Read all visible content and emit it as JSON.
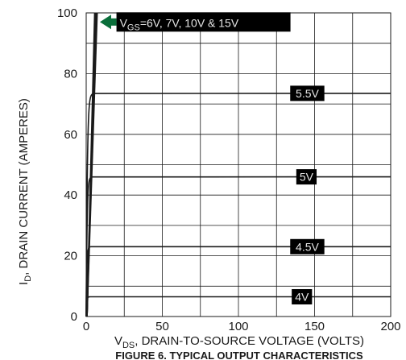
{
  "chart_data": {
    "type": "line",
    "title": "",
    "caption": "FIGURE 6. TYPICAL OUTPUT CHARACTERISTICS",
    "xlabel": {
      "main": "V",
      "sub": "DS",
      "rest": ", DRAIN-TO-SOURCE VOLTAGE (VOLTS)"
    },
    "ylabel": {
      "main": "I",
      "sub": "D",
      "rest": ", DRAIN CURRENT (AMPERES)"
    },
    "xlim": [
      0,
      200
    ],
    "ylim": [
      0,
      100
    ],
    "x_ticks": [
      0,
      50,
      100,
      150,
      200
    ],
    "y_ticks": [
      0,
      20,
      40,
      60,
      80,
      100
    ],
    "x_grid": [
      0,
      25,
      50,
      75,
      100,
      125,
      150,
      175,
      200
    ],
    "y_grid": [
      0,
      10,
      20,
      30,
      40,
      50,
      60,
      70,
      80,
      90,
      100
    ],
    "grid": true,
    "series": [
      {
        "name": "4V",
        "saturation": 6.5,
        "label_x": 135,
        "label_y": 6.5
      },
      {
        "name": "4.5V",
        "saturation": 23,
        "label_x": 134,
        "label_y": 23
      },
      {
        "name": "5V",
        "saturation": 46,
        "label_x": 138,
        "label_y": 46
      },
      {
        "name": "5.5V",
        "saturation": 73.5,
        "label_x": 134,
        "label_y": 73.5
      }
    ],
    "steep_group": {
      "label": {
        "main": "V",
        "sub": "GS",
        "rest": "=6V, 7V, 10V & 15V"
      },
      "lines": [
        {
          "x1": 5.6,
          "y_at": 100
        },
        {
          "x1": 6.0,
          "y_at": 100
        },
        {
          "x1": 6.5,
          "y_at": 100
        },
        {
          "x1": 7.2,
          "y_at": 100
        }
      ],
      "arrow_target": [
        9,
        97
      ],
      "label_x": 22,
      "label_y": 97
    },
    "colors": {
      "curve": "#1a1a1a",
      "grid": "#1a1a1a",
      "label_bg": "#000000",
      "label_text": "#e6e6e6",
      "arrow": "#0a6e3a"
    }
  }
}
